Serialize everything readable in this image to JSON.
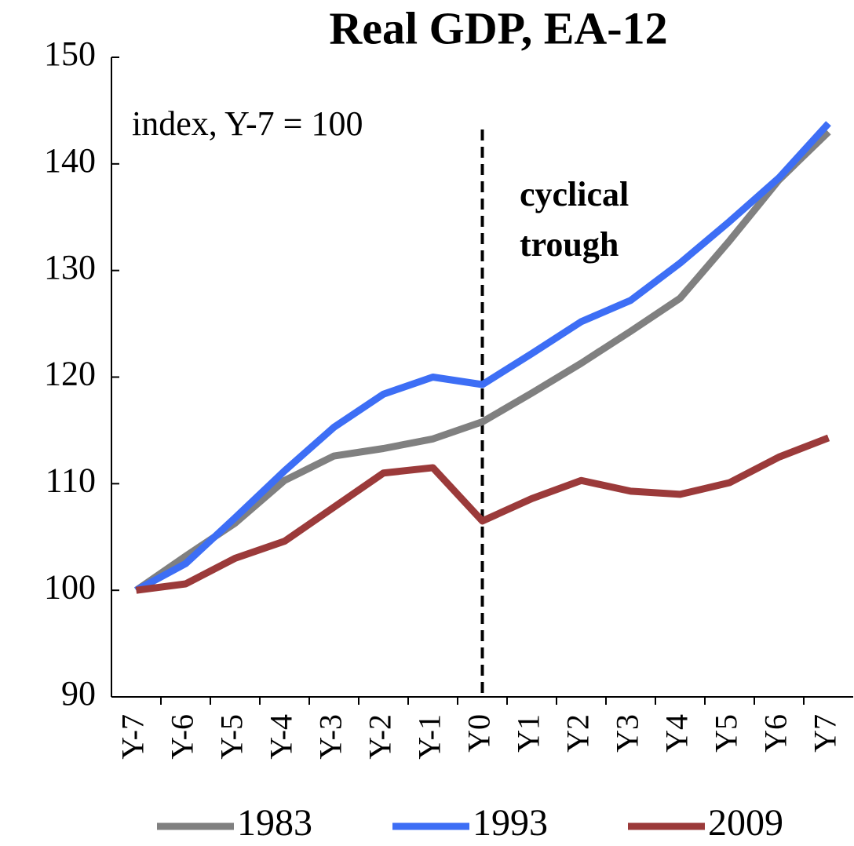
{
  "chart_data": {
    "type": "line",
    "title": "Real GDP, EA-12",
    "categories": [
      "Y-7",
      "Y-6",
      "Y-5",
      "Y-4",
      "Y-3",
      "Y-2",
      "Y-1",
      "Y0",
      "Y1",
      "Y2",
      "Y3",
      "Y4",
      "Y5",
      "Y6",
      "Y7"
    ],
    "series": [
      {
        "name": "1983",
        "color": "#808080",
        "values": [
          100,
          103.2,
          106.3,
          110.3,
          112.6,
          113.3,
          114.2,
          115.8,
          118.5,
          121.3,
          124.3,
          127.4,
          132.8,
          138.5,
          143
        ]
      },
      {
        "name": "1993",
        "color": "#3d6ef5",
        "values": [
          100,
          102.5,
          106.8,
          111.2,
          115.3,
          118.4,
          120,
          119.3,
          122.2,
          125.2,
          127.2,
          130.7,
          134.6,
          138.7,
          143.8
        ]
      },
      {
        "name": "2009",
        "color": "#9b3a3a",
        "values": [
          100,
          100.6,
          103,
          104.6,
          107.8,
          111,
          111.5,
          106.5,
          108.6,
          110.3,
          109.3,
          109,
          110.1,
          112.5,
          114.3
        ]
      }
    ],
    "ylim": [
      90,
      150
    ],
    "yticks": [
      90,
      100,
      110,
      120,
      130,
      140,
      150
    ],
    "annotations": {
      "unit_note": "index, Y-7 = 100",
      "trough_label": [
        "cyclical",
        "trough"
      ]
    },
    "vline_category": "Y0",
    "grid": false,
    "legend": "bottom"
  }
}
